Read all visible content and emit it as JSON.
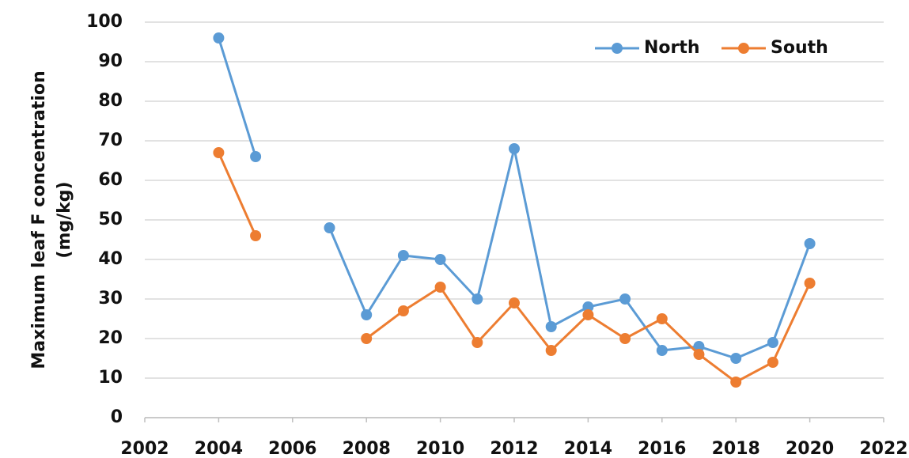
{
  "chart_data": {
    "type": "line",
    "ylabel": [
      "Maximum leaf F concentration",
      "(mg/kg)"
    ],
    "x": [
      2004,
      2005,
      2006,
      2007,
      2008,
      2009,
      2010,
      2011,
      2012,
      2013,
      2014,
      2015,
      2016,
      2017,
      2018,
      2019,
      2020
    ],
    "series": [
      {
        "name": "North",
        "color": "#5b9bd5",
        "values": [
          96,
          66,
          null,
          48,
          26,
          41,
          40,
          30,
          68,
          23,
          28,
          30,
          17,
          18,
          15,
          19,
          44
        ]
      },
      {
        "name": "South",
        "color": "#ed7d31",
        "values": [
          67,
          46,
          null,
          null,
          20,
          27,
          33,
          19,
          29,
          17,
          26,
          20,
          25,
          16,
          9,
          14,
          34
        ]
      }
    ],
    "xlim": [
      2002,
      2022
    ],
    "xticks": [
      2002,
      2004,
      2006,
      2008,
      2010,
      2012,
      2014,
      2016,
      2018,
      2020,
      2022
    ],
    "ylim": [
      0,
      100
    ],
    "yticks": [
      0,
      10,
      20,
      30,
      40,
      50,
      60,
      70,
      80,
      90,
      100
    ],
    "grid": true,
    "legend": "upper right"
  }
}
